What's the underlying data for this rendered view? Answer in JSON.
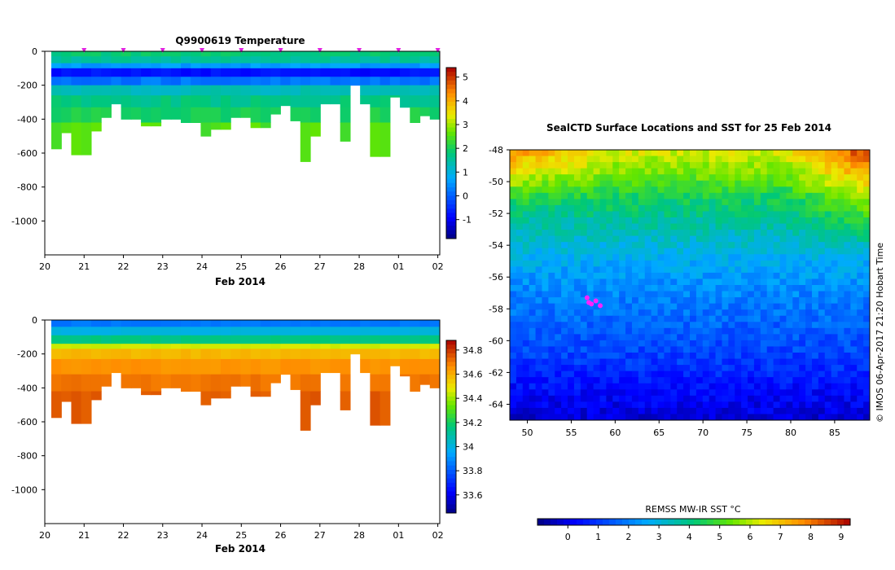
{
  "chart_data": [
    {
      "type": "heatmap",
      "title": "Q9900619  Temperature",
      "xlabel": "Feb 2014",
      "x_ticks": [
        "20",
        "21",
        "22",
        "23",
        "24",
        "25",
        "26",
        "27",
        "28",
        "01",
        "02"
      ],
      "x_range": [
        20,
        30.05
      ],
      "y_ticks": [
        0,
        -200,
        -400,
        -600,
        -800,
        -1000
      ],
      "ylim": [
        -1200,
        0
      ],
      "colorbar": {
        "ticks": [
          -1,
          0,
          1,
          2,
          3,
          4,
          5
        ],
        "range": [
          -1.8,
          5.4
        ]
      },
      "profile_markers": [
        "21",
        "22",
        "23",
        "24",
        "25",
        "26",
        "27",
        "28",
        "01",
        "02"
      ],
      "profile_depths": [
        -575,
        -480,
        -610,
        -610,
        -470,
        -390,
        -310,
        -400,
        -400,
        -440,
        -440,
        -400,
        -400,
        -420,
        -420,
        -500,
        -460,
        -460,
        -390,
        -390,
        -450,
        -450,
        -370,
        -320,
        -410,
        -650,
        -500,
        -310,
        -310,
        -530,
        -200,
        -310,
        -620,
        -620,
        -270,
        -330,
        -420,
        -380,
        -400
      ],
      "layers": [
        {
          "depth": [
            0,
            -30
          ],
          "value": 1.8
        },
        {
          "depth": [
            -30,
            -70
          ],
          "value": 1.5
        },
        {
          "depth": [
            -70,
            -100
          ],
          "value": 0.6
        },
        {
          "depth": [
            -100,
            -150
          ],
          "value": -0.8
        },
        {
          "depth": [
            -150,
            -200
          ],
          "value": 0.2
        },
        {
          "depth": [
            -200,
            -260
          ],
          "value": 1.3
        },
        {
          "depth": [
            -260,
            -330
          ],
          "value": 1.7
        },
        {
          "depth": [
            -330,
            -420
          ],
          "value": 2.0
        },
        {
          "depth": [
            -420,
            -660
          ],
          "value": 2.5
        }
      ]
    },
    {
      "type": "heatmap",
      "title": "",
      "xlabel": "Feb 2014",
      "x_ticks": [
        "20",
        "21",
        "22",
        "23",
        "24",
        "25",
        "26",
        "27",
        "28",
        "01",
        "02"
      ],
      "x_range": [
        20,
        30.05
      ],
      "y_ticks": [
        0,
        -200,
        -400,
        -600,
        -800,
        -1000
      ],
      "ylim": [
        -1200,
        0
      ],
      "colorbar": {
        "ticks": [
          "33.6",
          "33.8",
          "34",
          "34.2",
          "34.4",
          "34.6",
          "34.8"
        ],
        "range": [
          33.45,
          34.88
        ]
      },
      "layers": [
        {
          "depth": [
            0,
            -40
          ],
          "value": 33.85
        },
        {
          "depth": [
            -40,
            -90
          ],
          "value": 34.0
        },
        {
          "depth": [
            -90,
            -140
          ],
          "value": 34.15
        },
        {
          "depth": [
            -140,
            -170
          ],
          "value": 34.45
        },
        {
          "depth": [
            -170,
            -230
          ],
          "value": 34.58
        },
        {
          "depth": [
            -230,
            -320
          ],
          "value": 34.65
        },
        {
          "depth": [
            -320,
            -420
          ],
          "value": 34.7
        },
        {
          "depth": [
            -420,
            -660
          ],
          "value": 34.74
        }
      ]
    },
    {
      "type": "heatmap",
      "title": "SealCTD Surface Locations and SST for 25 Feb 2014",
      "x_ticks": [
        50,
        55,
        60,
        65,
        70,
        75,
        80,
        85
      ],
      "xlim": [
        48,
        89
      ],
      "y_ticks": [
        -48,
        -50,
        -52,
        -54,
        -56,
        -58,
        -60,
        -62,
        -64
      ],
      "ylim": [
        -65,
        -48
      ],
      "colorbar": {
        "label": "REMSS MW-IR SST °C",
        "ticks": [
          0,
          1,
          2,
          3,
          4,
          5,
          6,
          7,
          8,
          9
        ],
        "range": [
          -1.0,
          9.3
        ]
      },
      "sst_lat_profile": [
        {
          "lat": -48,
          "value": 6.3
        },
        {
          "lat": -49.5,
          "value": 5.5
        },
        {
          "lat": -51,
          "value": 4.4
        },
        {
          "lat": -53,
          "value": 3.5
        },
        {
          "lat": -55,
          "value": 2.7
        },
        {
          "lat": -57,
          "value": 2.1
        },
        {
          "lat": -59,
          "value": 1.6
        },
        {
          "lat": -61,
          "value": 1.1
        },
        {
          "lat": -63,
          "value": 0.4
        },
        {
          "lat": -65,
          "value": -0.2
        }
      ],
      "seal_positions": [
        {
          "lon": 56.8,
          "lat": -57.3
        },
        {
          "lon": 57.0,
          "lat": -57.6
        },
        {
          "lon": 57.3,
          "lat": -57.7
        },
        {
          "lon": 57.8,
          "lat": -57.5
        },
        {
          "lon": 58.3,
          "lat": -57.8
        }
      ],
      "footnote": "© IMOS 06-Apr-2017 21:20 Hobart Time"
    }
  ]
}
